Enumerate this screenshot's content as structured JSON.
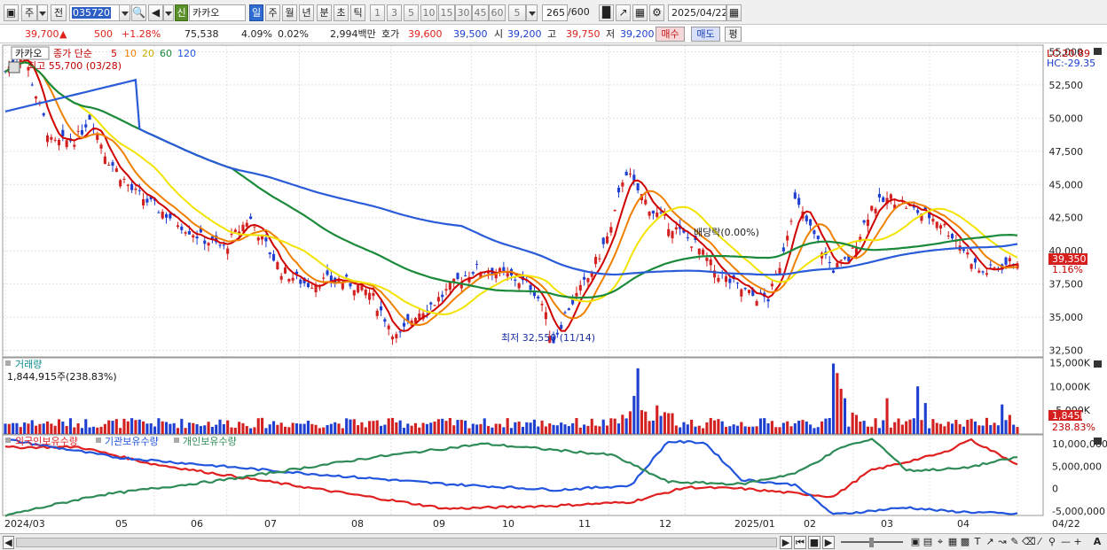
{
  "toolbar": {
    "period_main": "주",
    "period_prev": "전",
    "stock_code": "035720",
    "stock_name": "카카오",
    "badge_new": "신",
    "periods": [
      "일",
      "주",
      "월",
      "년",
      "분",
      "초",
      "틱"
    ],
    "intervals": [
      "1",
      "3",
      "5",
      "10",
      "15",
      "30",
      "45",
      "60"
    ],
    "interval_value": "5",
    "count_value": "265",
    "count_total": "/600",
    "date": "2025/04/22"
  },
  "quote": {
    "price": "39,700",
    "change_arrow": "▲",
    "change": "500",
    "change_rate": "+1.28%",
    "volume": "75,538",
    "volume_rate": "4.09%",
    "turnover_rate": "0.02%",
    "amount": "2,994백만",
    "hoga_label": "호가",
    "ask": "39,600",
    "bid": "39,500",
    "open_label": "시",
    "open": "39,200",
    "high_label": "고",
    "high": "39,750",
    "low_label": "저",
    "low": "39,200",
    "buy_label": "매수",
    "sell_label": "매도",
    "flat_label": "평"
  },
  "price_panel": {
    "stock_name": "카카오",
    "legend": [
      {
        "label": "종가 단순",
        "color": "#c00000"
      },
      {
        "label": "5",
        "color": "#d00000"
      },
      {
        "label": "10",
        "color": "#f08000"
      },
      {
        "label": "20",
        "color": "#e8d000"
      },
      {
        "label": "60",
        "color": "#1a8a3a"
      },
      {
        "label": "120",
        "color": "#2255dd"
      }
    ],
    "high_annotation": "최고 55,700 (03/28)",
    "low_annotation": "최저 32,550 (11/14)",
    "dividend_annotation": "배당락(0.00%)",
    "lc": "LC:20.89",
    "hc": "HC:-29.35",
    "current_price_label": "39,350",
    "current_pct_label": "1.16%",
    "y_ticks": [
      "55,000",
      "52,500",
      "50,000",
      "47,500",
      "45,000",
      "42,500",
      "40,000",
      "37,500",
      "35,000",
      "32,500"
    ]
  },
  "volume_panel": {
    "title": "거래량",
    "current": "1,844,915주(238.83%)",
    "y_ticks": [
      "15,000K",
      "10,000K",
      "5,000K"
    ],
    "current_label": "1,845K",
    "current_pct": "238.83%"
  },
  "holdings_panel": {
    "legend": [
      {
        "label": "외국인보유수량",
        "color": "#e02020"
      },
      {
        "label": "기관보유수량",
        "color": "#2255dd"
      },
      {
        "label": "개인보유수량",
        "color": "#2e8b57"
      }
    ],
    "y_ticks": [
      "10,000,000",
      "5,000,000",
      "0",
      "-5,000,000"
    ]
  },
  "x_axis": {
    "labels": [
      "2024/03",
      "05",
      "06",
      "07",
      "08",
      "09",
      "10",
      "11",
      "12",
      "2025/01",
      "02",
      "03",
      "04"
    ],
    "end_label": "04/22"
  },
  "chart_data": [
    {
      "type": "candlestick-line",
      "series": [
        {
          "name": "종가 단순 5",
          "values": []
        },
        {
          "name": "10",
          "values": []
        },
        {
          "name": "20",
          "values": []
        },
        {
          "name": "60",
          "values": []
        },
        {
          "name": "120",
          "values": []
        }
      ],
      "ylim": [
        32000,
        55500
      ],
      "high": 55700,
      "low": 32550
    },
    {
      "type": "bar",
      "ylim": [
        0,
        16000
      ]
    },
    {
      "type": "line",
      "ylim": [
        -6000000,
        12000000
      ]
    }
  ],
  "colors": {
    "up": "#d32020",
    "down": "#1f3fd0",
    "ma5": "#d00000",
    "ma10": "#f08000",
    "ma20": "#f2e400",
    "ma60": "#1a8a3a",
    "ma120": "#2a5bd8"
  },
  "icons": [
    "chart-type-icon",
    "search-icon",
    "speaker-icon",
    "candle-icon",
    "line-icon",
    "save-icon",
    "gear-icon",
    "calendar-icon",
    "zoom-icon"
  ]
}
